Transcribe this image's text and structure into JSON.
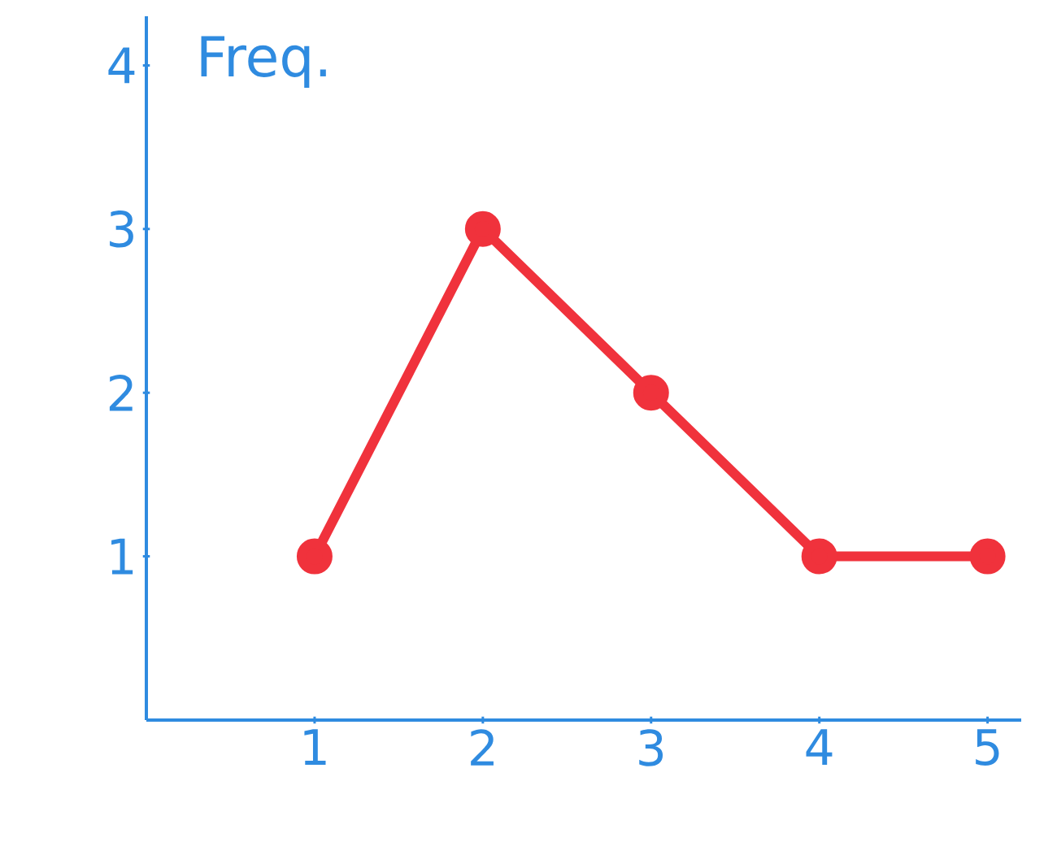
{
  "chart_data": {
    "type": "line",
    "ylabel": "Freq.",
    "x": [
      1,
      2,
      3,
      4,
      5
    ],
    "series": [
      {
        "color": "#f0323c",
        "values": [
          1,
          3,
          2,
          1,
          1
        ]
      }
    ],
    "xlim": [
      0,
      5.2
    ],
    "ylim": [
      0,
      4.3
    ],
    "xticks": [
      1,
      2,
      3,
      4,
      5
    ],
    "yticks": [
      1,
      2,
      3,
      4
    ],
    "grid": false,
    "marker": "circle",
    "line_style": "solid"
  }
}
